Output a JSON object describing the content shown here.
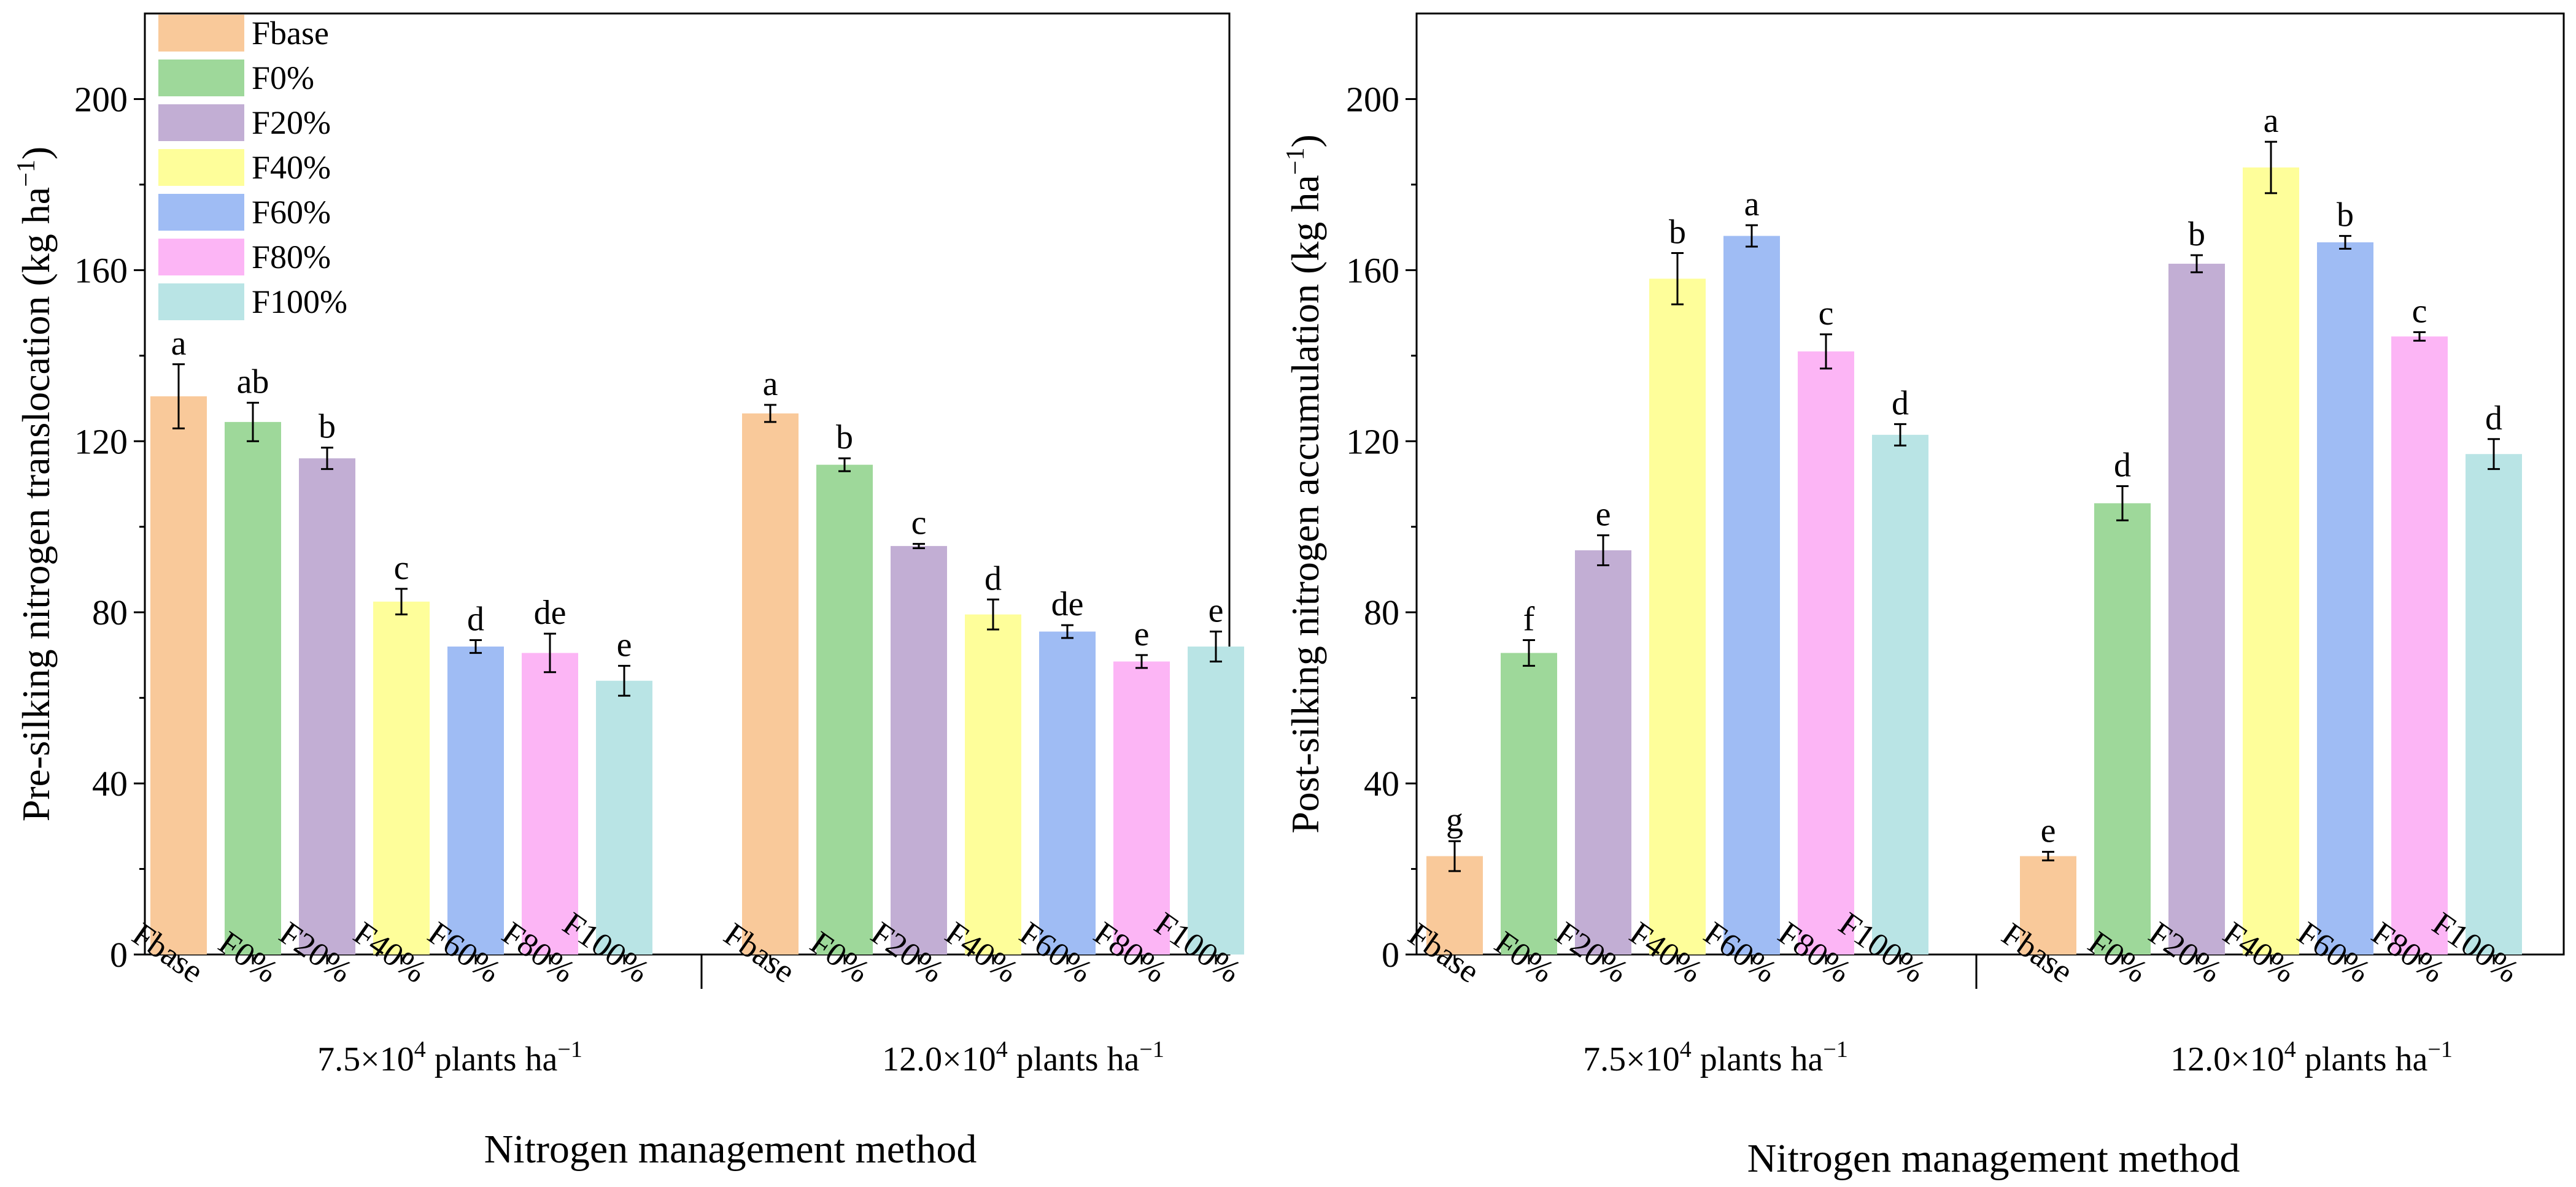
{
  "legend": {
    "items": [
      {
        "label": "Fbase",
        "color": "#F9C99A"
      },
      {
        "label": "F0%",
        "color": "#9ED89A"
      },
      {
        "label": "F20%",
        "color": "#C2AED4"
      },
      {
        "label": "F40%",
        "color": "#FEFE9A"
      },
      {
        "label": "F60%",
        "color": "#9FBCF4"
      },
      {
        "label": "F80%",
        "color": "#FCB5F5"
      },
      {
        "label": "F100%",
        "color": "#B9E4E5"
      }
    ]
  },
  "chart_data": [
    {
      "type": "bar",
      "title": "",
      "ylabel": "Pre-silking nitrogen translocation (kg ha",
      "ylabel_sup": "−1",
      "ylabel_close": ")",
      "xlabel": "Nitrogen management method",
      "ylim": [
        0,
        220
      ],
      "yticks": [
        "0",
        "40",
        "80",
        "120",
        "160",
        "200"
      ],
      "groups": [
        {
          "label_pre": "7.5×10",
          "label_sup": "4",
          "label_post": " plants ha",
          "label_sup2": "−1",
          "categories": [
            "Fbase",
            "F0%",
            "F20%",
            "F40%",
            "F60%",
            "F80%",
            "F100%"
          ],
          "values": [
            130.5,
            124.5,
            116.0,
            82.5,
            72.0,
            70.5,
            64.0
          ],
          "errors": [
            7.5,
            4.5,
            2.5,
            3.0,
            1.5,
            4.5,
            3.5
          ],
          "letters": [
            "a",
            "ab",
            "b",
            "c",
            "d",
            "de",
            "e"
          ]
        },
        {
          "label_pre": "12.0×10",
          "label_sup": "4",
          "label_post": " plants ha",
          "label_sup2": "−1",
          "categories": [
            "Fbase",
            "F0%",
            "F20%",
            "F40%",
            "F60%",
            "F80%",
            "F100%"
          ],
          "values": [
            126.5,
            114.5,
            95.5,
            79.5,
            75.5,
            68.5,
            72.0
          ],
          "errors": [
            2.0,
            1.5,
            0.5,
            3.5,
            1.5,
            1.5,
            3.5
          ],
          "letters": [
            "a",
            "b",
            "c",
            "d",
            "de",
            "e",
            "e"
          ]
        }
      ]
    },
    {
      "type": "bar",
      "title": "",
      "ylabel": "Post-silking nitrogen accumulation (kg ha",
      "ylabel_sup": "−1",
      "ylabel_close": ")",
      "xlabel": "Nitrogen management method",
      "ylim": [
        0,
        220
      ],
      "yticks": [
        "0",
        "40",
        "80",
        "120",
        "160",
        "200"
      ],
      "groups": [
        {
          "label_pre": "7.5×10",
          "label_sup": "4",
          "label_post": " plants ha",
          "label_sup2": "−1",
          "categories": [
            "Fbase",
            "F0%",
            "F20%",
            "F40%",
            "F60%",
            "F80%",
            "F100%"
          ],
          "values": [
            23.0,
            70.5,
            94.5,
            158.0,
            168.0,
            141.0,
            121.5
          ],
          "errors": [
            3.5,
            3.0,
            3.5,
            6.0,
            2.5,
            4.0,
            2.5
          ],
          "letters": [
            "g",
            "f",
            "e",
            "b",
            "a",
            "c",
            "d"
          ]
        },
        {
          "label_pre": "12.0×10",
          "label_sup": "4",
          "label_post": " plants ha",
          "label_sup2": "−1",
          "categories": [
            "Fbase",
            "F0%",
            "F20%",
            "F40%",
            "F60%",
            "F80%",
            "F100%"
          ],
          "values": [
            23.0,
            105.5,
            161.5,
            184.0,
            166.5,
            144.5,
            117.0
          ],
          "errors": [
            1.0,
            4.0,
            2.0,
            6.0,
            1.5,
            1.0,
            3.5
          ],
          "letters": [
            "e",
            "d",
            "b",
            "a",
            "b",
            "c",
            "d"
          ]
        }
      ]
    }
  ]
}
